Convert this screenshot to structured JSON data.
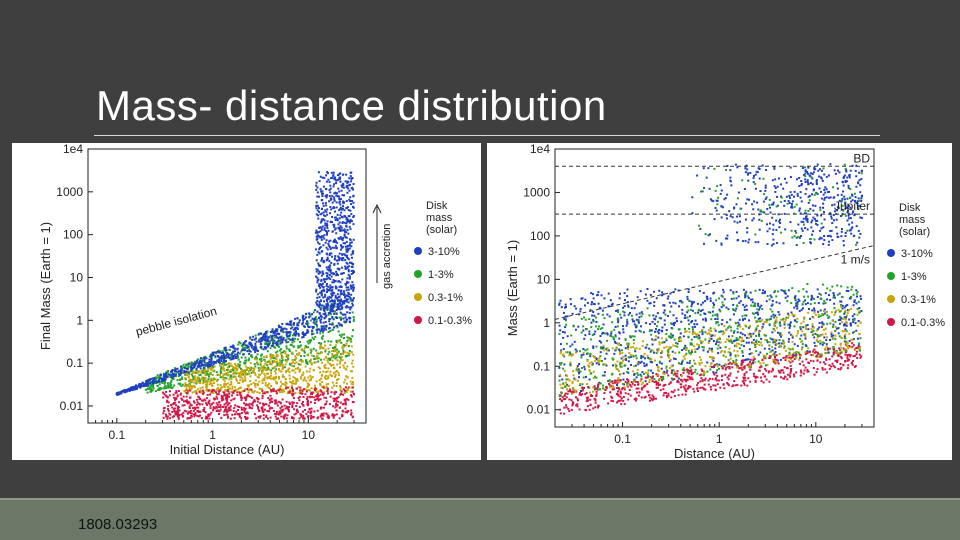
{
  "slide": {
    "title": "Mass- distance distribution",
    "reference": "1808.03293"
  },
  "chart_data": [
    {
      "type": "scatter",
      "xlabel": "Initial Distance (AU)",
      "ylabel": "Final Mass (Earth = 1)",
      "xscale": "log",
      "yscale": "log",
      "xlim": [
        0.05,
        40
      ],
      "ylim": [
        0.004,
        10000
      ],
      "x_ticks": [
        "0.1",
        "1",
        "10"
      ],
      "y_ticks": [
        "0.01",
        "0.1",
        "1",
        "10",
        "100",
        "1000",
        "1e4"
      ],
      "legend": {
        "title": [
          "Disk",
          "mass",
          "(solar)"
        ],
        "placement": "right",
        "entries": [
          {
            "label": "3-10%",
            "color": "#1f3fbf"
          },
          {
            "label": "1-3%",
            "color": "#22a22a"
          },
          {
            "label": "0.3-1%",
            "color": "#c8a50a"
          },
          {
            "label": "0.1-0.3%",
            "color": "#d01848"
          }
        ]
      },
      "annotations": [
        {
          "text": "pebble isolation",
          "type": "label"
        },
        {
          "text": "gas accretion",
          "type": "arrow-up"
        }
      ],
      "series": [
        {
          "label": "3-10%",
          "color": "#1f3fbf",
          "regions": [
            {
              "xrange": [
                0.1,
                28
              ],
              "m_low": [
                0.018,
                0.9
              ],
              "m_high": [
                0.02,
                4
              ]
            },
            {
              "xrange": [
                12,
                30
              ],
              "m_low": [
                2,
                2
              ],
              "m_high": [
                3000,
                3000
              ]
            }
          ]
        },
        {
          "label": "1-3%",
          "color": "#22a22a",
          "regions": [
            {
              "xrange": [
                0.2,
                30
              ],
              "m_low": [
                0.02,
                0.15
              ],
              "m_high": [
                0.04,
                4
              ]
            }
          ]
        },
        {
          "label": "0.3-1%",
          "color": "#c8a50a",
          "regions": [
            {
              "xrange": [
                0.5,
                30
              ],
              "m_low": [
                0.02,
                0.02
              ],
              "m_high": [
                0.06,
                0.4
              ]
            }
          ]
        },
        {
          "label": "0.1-0.3%",
          "color": "#d01848",
          "regions": [
            {
              "xrange": [
                0.3,
                30
              ],
              "m_low": [
                0.005,
                0.005
              ],
              "m_high": [
                0.022,
                0.03
              ]
            }
          ]
        }
      ]
    },
    {
      "type": "scatter",
      "xlabel": "Distance (AU)",
      "ylabel": "Mass (Earth = 1)",
      "xscale": "log",
      "yscale": "log",
      "xlim": [
        0.02,
        40
      ],
      "ylim": [
        0.004,
        10000
      ],
      "x_ticks": [
        "0.1",
        "1",
        "10"
      ],
      "y_ticks": [
        "0.01",
        "0.1",
        "1",
        "10",
        "100",
        "1000",
        "1e4"
      ],
      "legend": {
        "title": [
          "Disk",
          "mass",
          "(solar)"
        ],
        "placement": "right",
        "entries": [
          {
            "label": "3-10%",
            "color": "#1f3fbf"
          },
          {
            "label": "1-3%",
            "color": "#22a22a"
          },
          {
            "label": "0.3-1%",
            "color": "#c8a50a"
          },
          {
            "label": "0.1-0.3%",
            "color": "#d01848"
          }
        ]
      },
      "reference_lines": [
        {
          "label": "BD",
          "style": "dashed",
          "y": 4000
        },
        {
          "label": "Jupiter",
          "style": "dashed",
          "y": 318
        },
        {
          "label": "1 m/s",
          "style": "dashed",
          "slope_line": [
            [
              0.02,
              1.2
            ],
            [
              40,
              60
            ]
          ]
        }
      ]
    }
  ]
}
